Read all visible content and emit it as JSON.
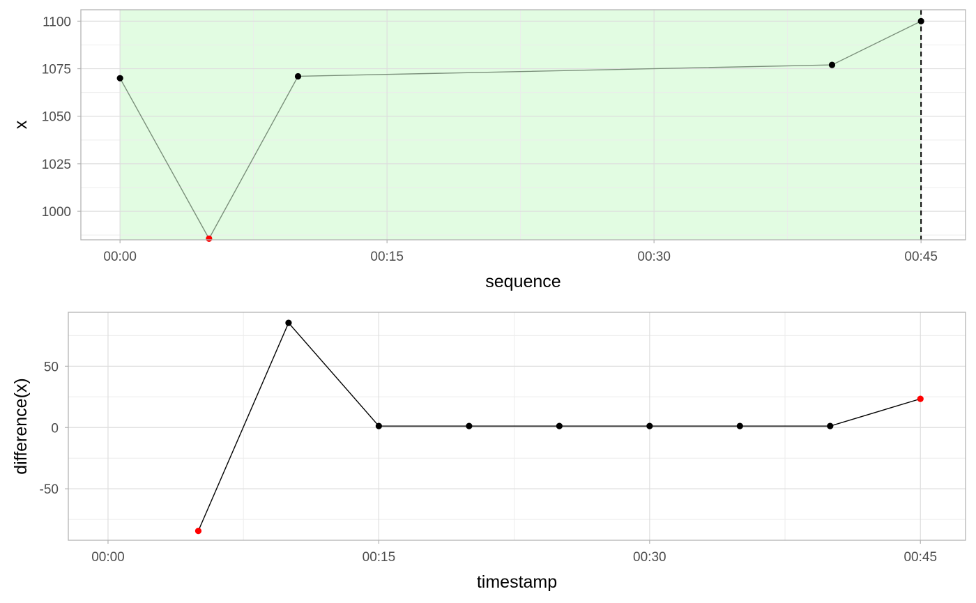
{
  "chart_data": [
    {
      "type": "line",
      "xlabel": "sequence",
      "ylabel": "x",
      "x_ticks": [
        "00:00",
        "00:15",
        "00:30",
        "00:45"
      ],
      "x_tick_values": [
        0,
        15,
        30,
        45
      ],
      "y_ticks": [
        "1000",
        "1025",
        "1050",
        "1075",
        "1100"
      ],
      "y_tick_values": [
        1000,
        1025,
        1050,
        1075,
        1100
      ],
      "xlim": [
        -2.2,
        47.5
      ],
      "ylim": [
        985,
        1106
      ],
      "grid": true,
      "shaded_region": {
        "x_start": 0,
        "x_end": 45,
        "color": "#e2fce2"
      },
      "vline": {
        "x": 45,
        "style": "dashed"
      },
      "line_color": "#7a8f7a",
      "x": [
        0,
        5,
        10,
        40,
        45
      ],
      "values": [
        1070,
        985.6,
        1071,
        1077,
        1100
      ],
      "point_colors": [
        "#000000",
        "#ff0000",
        "#000000",
        "#000000",
        "#000000"
      ]
    },
    {
      "type": "line",
      "xlabel": "timestamp",
      "ylabel": "difference(x)",
      "x_ticks": [
        "00:00",
        "00:15",
        "00:30",
        "00:45"
      ],
      "x_tick_values": [
        0,
        15,
        30,
        45
      ],
      "y_ticks": [
        "-50",
        "0",
        "50"
      ],
      "y_tick_values": [
        -50,
        0,
        50
      ],
      "xlim": [
        -2.2,
        47.5
      ],
      "ylim": [
        -92,
        94
      ],
      "grid": true,
      "line_color": "#000000",
      "x": [
        5,
        10,
        15,
        20,
        25,
        30,
        35,
        40,
        45
      ],
      "values": [
        -84.4,
        85.4,
        1.2,
        1.2,
        1.2,
        1.2,
        1.2,
        1.2,
        23.4
      ],
      "point_colors": [
        "#ff0000",
        "#000000",
        "#000000",
        "#000000",
        "#000000",
        "#000000",
        "#000000",
        "#000000",
        "#ff0000"
      ]
    }
  ]
}
